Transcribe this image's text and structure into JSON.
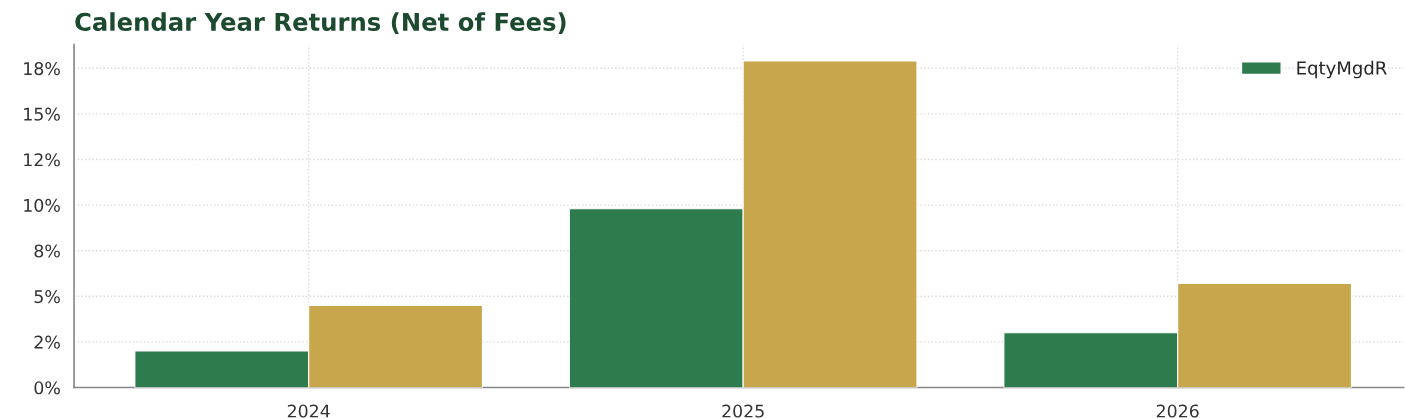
{
  "chart_data": {
    "type": "bar",
    "title": "Calendar Year Returns (Net of Fees)",
    "categories": [
      "2024",
      "2025",
      "2026"
    ],
    "series": [
      {
        "name": "EqtyMgdR",
        "color": "#2e7b4e",
        "values": [
          2.0,
          9.8,
          3.0
        ]
      },
      {
        "color": "#c8a74c",
        "values": [
          4.5,
          17.9,
          5.7
        ]
      }
    ],
    "ylim": [
      0,
      18.8
    ],
    "yticks": [
      {
        "value": 0,
        "label": "0%"
      },
      {
        "value": 2.5,
        "label": "2%"
      },
      {
        "value": 5,
        "label": "5%"
      },
      {
        "value": 7.5,
        "label": "8%"
      },
      {
        "value": 10,
        "label": "10%"
      },
      {
        "value": 12.5,
        "label": "12%"
      },
      {
        "value": 15,
        "label": "15%"
      },
      {
        "value": 17.5,
        "label": "18%"
      }
    ],
    "grid": true,
    "legend": "top right"
  }
}
